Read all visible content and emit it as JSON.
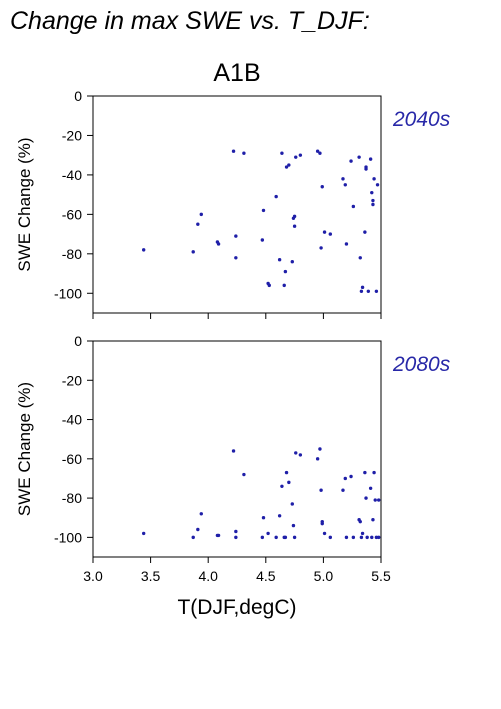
{
  "title": "Change in max SWE vs. T_DJF:",
  "scenario": "A1B",
  "xlabel": "T(DJF,degC)",
  "colors": {
    "points": "#1f1fa8",
    "period_label": "#2828a8"
  },
  "chart_data": [
    {
      "type": "scatter",
      "period": "2040s",
      "xlabel": "",
      "ylabel": "SWE Change (%)",
      "xlim": [
        3.0,
        5.5
      ],
      "ylim": [
        -110,
        0
      ],
      "xticks": [
        3.0,
        3.5,
        4.0,
        4.5,
        5.0,
        5.5
      ],
      "yticks": [
        0,
        -20,
        -40,
        -60,
        -80,
        -100
      ],
      "points": [
        [
          3.44,
          -78
        ],
        [
          3.87,
          -79
        ],
        [
          3.91,
          -65
        ],
        [
          3.94,
          -60
        ],
        [
          4.08,
          -74
        ],
        [
          4.09,
          -75
        ],
        [
          4.22,
          -28
        ],
        [
          4.24,
          -71
        ],
        [
          4.24,
          -82
        ],
        [
          4.31,
          -29
        ],
        [
          4.47,
          -73
        ],
        [
          4.48,
          -58
        ],
        [
          4.52,
          -95
        ],
        [
          4.53,
          -96
        ],
        [
          4.59,
          -51
        ],
        [
          4.62,
          -83
        ],
        [
          4.64,
          -29
        ],
        [
          4.66,
          -96
        ],
        [
          4.67,
          -89
        ],
        [
          4.68,
          -36
        ],
        [
          4.7,
          -35
        ],
        [
          4.73,
          -84
        ],
        [
          4.74,
          -62
        ],
        [
          4.75,
          -66
        ],
        [
          4.75,
          -61
        ],
        [
          4.76,
          -31
        ],
        [
          4.8,
          -30
        ],
        [
          4.95,
          -28
        ],
        [
          4.97,
          -29
        ],
        [
          4.98,
          -77
        ],
        [
          4.99,
          -46
        ],
        [
          5.01,
          -69
        ],
        [
          5.06,
          -70
        ],
        [
          5.17,
          -42
        ],
        [
          5.19,
          -45
        ],
        [
          5.2,
          -75
        ],
        [
          5.24,
          -33
        ],
        [
          5.26,
          -56
        ],
        [
          5.31,
          -31
        ],
        [
          5.32,
          -82
        ],
        [
          5.33,
          -99
        ],
        [
          5.34,
          -97
        ],
        [
          5.36,
          -69
        ],
        [
          5.37,
          -36
        ],
        [
          5.37,
          -37
        ],
        [
          5.39,
          -99
        ],
        [
          5.41,
          -32
        ],
        [
          5.42,
          -49
        ],
        [
          5.43,
          -53
        ],
        [
          5.43,
          -55
        ],
        [
          5.44,
          -42
        ],
        [
          5.46,
          -99
        ],
        [
          5.47,
          -45
        ]
      ]
    },
    {
      "type": "scatter",
      "period": "2080s",
      "xlabel": "T(DJF,degC)",
      "ylabel": "SWE Change (%)",
      "xlim": [
        3.0,
        5.5
      ],
      "ylim": [
        -110,
        0
      ],
      "xticks": [
        3.0,
        3.5,
        4.0,
        4.5,
        5.0,
        5.5
      ],
      "yticks": [
        0,
        -20,
        -40,
        -60,
        -80,
        -100
      ],
      "points": [
        [
          3.44,
          -98
        ],
        [
          3.87,
          -100
        ],
        [
          3.91,
          -96
        ],
        [
          3.94,
          -88
        ],
        [
          4.08,
          -99
        ],
        [
          4.09,
          -99
        ],
        [
          4.22,
          -56
        ],
        [
          4.24,
          -97
        ],
        [
          4.24,
          -100
        ],
        [
          4.31,
          -68
        ],
        [
          4.47,
          -100
        ],
        [
          4.48,
          -90
        ],
        [
          4.52,
          -98
        ],
        [
          4.59,
          -100
        ],
        [
          4.62,
          -89
        ],
        [
          4.64,
          -74
        ],
        [
          4.66,
          -100
        ],
        [
          4.67,
          -100
        ],
        [
          4.68,
          -67
        ],
        [
          4.7,
          -72
        ],
        [
          4.73,
          -83
        ],
        [
          4.74,
          -94
        ],
        [
          4.75,
          -100
        ],
        [
          4.76,
          -57
        ],
        [
          4.8,
          -58
        ],
        [
          4.95,
          -60
        ],
        [
          4.97,
          -55
        ],
        [
          4.98,
          -76
        ],
        [
          4.99,
          -92
        ],
        [
          4.99,
          -93
        ],
        [
          5.01,
          -98
        ],
        [
          5.06,
          -100
        ],
        [
          5.17,
          -76
        ],
        [
          5.19,
          -70
        ],
        [
          5.2,
          -100
        ],
        [
          5.24,
          -69
        ],
        [
          5.26,
          -100
        ],
        [
          5.31,
          -91
        ],
        [
          5.32,
          -92
        ],
        [
          5.33,
          -100
        ],
        [
          5.34,
          -98
        ],
        [
          5.36,
          -67
        ],
        [
          5.37,
          -80
        ],
        [
          5.38,
          -100
        ],
        [
          5.41,
          -75
        ],
        [
          5.42,
          -100
        ],
        [
          5.43,
          -91
        ],
        [
          5.44,
          -67
        ],
        [
          5.45,
          -81
        ],
        [
          5.46,
          -100
        ],
        [
          5.48,
          -81
        ],
        [
          5.48,
          -100
        ]
      ]
    }
  ]
}
